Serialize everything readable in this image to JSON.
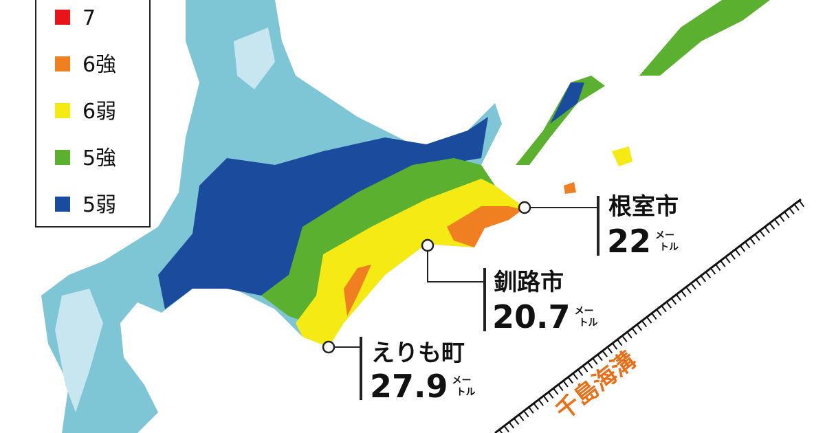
{
  "legend": [
    {
      "label": "7",
      "color": "#e8141c"
    },
    {
      "label": "6強",
      "color": "#f07f22"
    },
    {
      "label": "6弱",
      "color": "#f5ea14"
    },
    {
      "label": "5強",
      "color": "#5cb030"
    },
    {
      "label": "5弱",
      "color": "#1b4b9c"
    }
  ],
  "cities": [
    {
      "name": "根室市",
      "value": "22",
      "unit": [
        "メー",
        "トル"
      ]
    },
    {
      "name": "釧路市",
      "value": "20.7",
      "unit": [
        "メー",
        "トル"
      ]
    },
    {
      "name": "えりも町",
      "value": "27.9",
      "unit": [
        "メー",
        "トル"
      ]
    }
  ],
  "trench_label": "千島海溝"
}
